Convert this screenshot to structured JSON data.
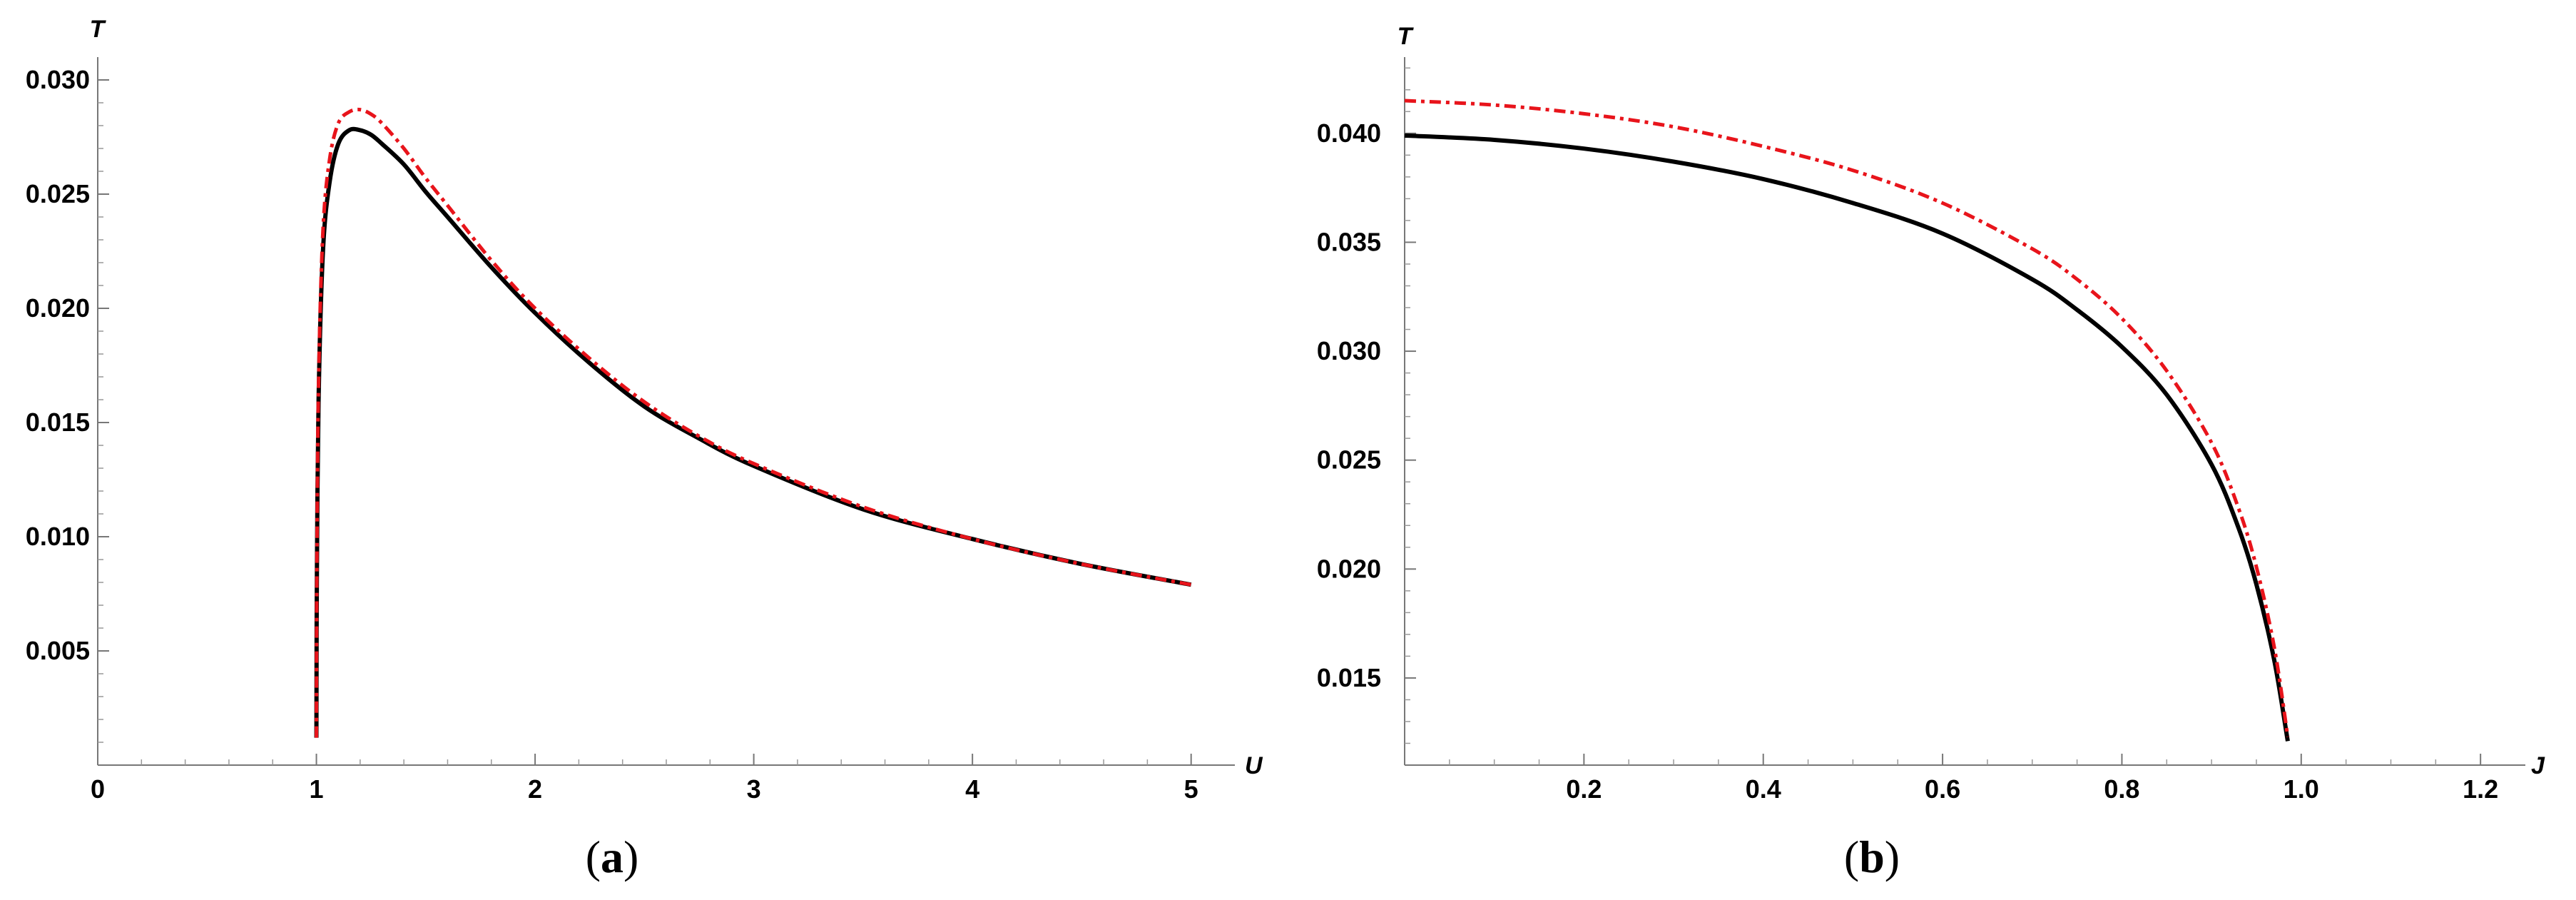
{
  "chart_data": [
    {
      "type": "line",
      "panel_label": "a",
      "xlabel": "U",
      "ylabel": "T",
      "xlim": [
        0,
        5.2
      ],
      "ylim": [
        0,
        0.031
      ],
      "xticks": [
        0,
        1,
        2,
        3,
        4,
        5
      ],
      "xtick_labels": [
        "0",
        "1",
        "2",
        "3",
        "4",
        "5"
      ],
      "yticks": [
        0.005,
        0.01,
        0.015,
        0.02,
        0.025,
        0.03
      ],
      "ytick_labels": [
        "0.005",
        "0.010",
        "0.015",
        "0.020",
        "0.025",
        "0.030"
      ],
      "grid": false,
      "series": [
        {
          "color": "#000000",
          "style": "solid",
          "x": [
            1.0,
            1.002,
            1.01,
            1.03,
            1.06,
            1.1,
            1.15,
            1.2,
            1.25,
            1.3,
            1.4,
            1.5,
            1.6,
            1.8,
            2.0,
            2.25,
            2.5,
            2.75,
            3.0,
            3.5,
            4.0,
            4.5,
            5.0
          ],
          "y": [
            0.0012,
            0.008,
            0.016,
            0.0225,
            0.0255,
            0.0272,
            0.0278,
            0.0278,
            0.0276,
            0.0272,
            0.0263,
            0.0251,
            0.024,
            0.0218,
            0.0198,
            0.0176,
            0.0157,
            0.0143,
            0.0131,
            0.0112,
            0.0099,
            0.0088,
            0.0079
          ]
        },
        {
          "color": "#e8141b",
          "style": "dash-dot",
          "x": [
            1.0,
            1.002,
            1.01,
            1.03,
            1.06,
            1.1,
            1.15,
            1.2,
            1.25,
            1.3,
            1.4,
            1.5,
            1.6,
            1.8,
            2.0,
            2.25,
            2.5,
            2.75,
            3.0,
            3.5,
            4.0,
            4.5,
            5.0
          ],
          "y": [
            0.0012,
            0.0085,
            0.0168,
            0.0234,
            0.0265,
            0.0281,
            0.0286,
            0.0287,
            0.0285,
            0.0281,
            0.027,
            0.0257,
            0.0245,
            0.0221,
            0.02,
            0.0178,
            0.0159,
            0.0144,
            0.0132,
            0.0113,
            0.0099,
            0.0088,
            0.0079
          ]
        }
      ]
    },
    {
      "type": "line",
      "panel_label": "b",
      "xlabel": "J",
      "ylabel": "T",
      "xlim": [
        0,
        1.25
      ],
      "ylim": [
        0.011,
        0.0435
      ],
      "xticks": [
        0.2,
        0.4,
        0.6,
        0.8,
        1.0,
        1.2
      ],
      "xtick_labels": [
        "0.2",
        "0.4",
        "0.6",
        "0.8",
        "1.0",
        "1.2"
      ],
      "yticks": [
        0.015,
        0.02,
        0.025,
        0.03,
        0.035,
        0.04
      ],
      "ytick_labels": [
        "0.015",
        "0.020",
        "0.025",
        "0.030",
        "0.035",
        "0.040"
      ],
      "grid": false,
      "series": [
        {
          "color": "#000000",
          "style": "solid",
          "x": [
            0.0,
            0.1,
            0.2,
            0.3,
            0.4,
            0.5,
            0.6,
            0.7,
            0.75,
            0.8,
            0.85,
            0.9,
            0.93,
            0.95,
            0.97,
            0.985
          ],
          "y": [
            0.0399,
            0.0397,
            0.0393,
            0.0387,
            0.0379,
            0.0368,
            0.0354,
            0.0333,
            0.0319,
            0.0302,
            0.028,
            0.0248,
            0.0219,
            0.0193,
            0.0158,
            0.0121
          ]
        },
        {
          "color": "#e8141b",
          "style": "dash-dot",
          "x": [
            0.0,
            0.1,
            0.2,
            0.3,
            0.4,
            0.5,
            0.6,
            0.7,
            0.75,
            0.8,
            0.85,
            0.9,
            0.93,
            0.95,
            0.97,
            0.985
          ],
          "y": [
            0.0415,
            0.0413,
            0.0409,
            0.0403,
            0.0394,
            0.0383,
            0.0368,
            0.0347,
            0.0333,
            0.0315,
            0.0291,
            0.0258,
            0.0228,
            0.0201,
            0.0164,
            0.0123
          ]
        }
      ]
    }
  ]
}
